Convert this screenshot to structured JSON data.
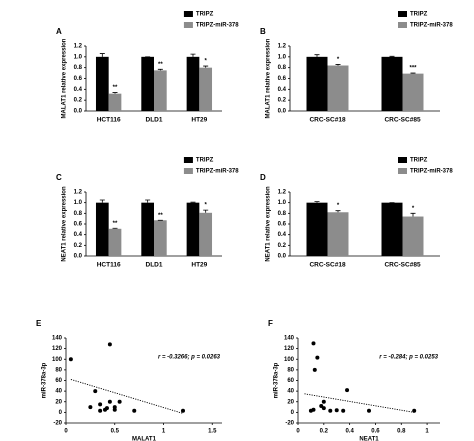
{
  "chart_data": [
    {
      "type": "bar",
      "label": "A",
      "ylabel": "MALAT1 relative expression",
      "categories": [
        "HCT116",
        "DLD1",
        "HT29"
      ],
      "series": [
        {
          "name": "TRIPZ",
          "color": "#000000",
          "values": [
            1.0,
            1.0,
            1.0
          ],
          "errors": [
            0.06,
            0.0,
            0.05
          ]
        },
        {
          "name": "TRIPZ-miR-378",
          "color": "#8c8c8c",
          "values": [
            0.32,
            0.75,
            0.8
          ],
          "errors": [
            0.02,
            0.02,
            0.03
          ],
          "annotations": [
            "**",
            "**",
            "*"
          ]
        }
      ],
      "ylim": [
        0,
        1.2
      ],
      "yticks": [
        {
          "value": 0,
          "label": "0.0"
        },
        0.2,
        0.4,
        0.6,
        0.8,
        {
          "value": 1,
          "label": "1.0"
        },
        1.2
      ]
    },
    {
      "type": "bar",
      "label": "B",
      "ylabel": "MALAT1 relative expression",
      "categories": [
        "CRC-SC#18",
        "CRC-SC#85"
      ],
      "series": [
        {
          "name": "TRIPZ",
          "color": "#000000",
          "values": [
            1.0,
            1.0
          ],
          "errors": [
            0.04,
            0.01
          ]
        },
        {
          "name": "TRIPZ-miR-378",
          "color": "#8c8c8c",
          "values": [
            0.84,
            0.69
          ],
          "errors": [
            0.02,
            0.01
          ],
          "annotations": [
            "*",
            "***"
          ]
        }
      ],
      "ylim": [
        0,
        1.2
      ],
      "yticks": [
        {
          "value": 0,
          "label": "0.0"
        },
        0.2,
        0.4,
        0.6,
        0.8,
        {
          "value": 1,
          "label": "1.0"
        },
        1.2
      ]
    },
    {
      "type": "bar",
      "label": "C",
      "ylabel": "NEAT1 relative expression",
      "categories": [
        "HCT116",
        "DLD1",
        "HT29"
      ],
      "series": [
        {
          "name": "TRIPZ",
          "color": "#000000",
          "values": [
            1.0,
            1.0,
            1.0
          ],
          "errors": [
            0.05,
            0.05,
            0.01
          ]
        },
        {
          "name": "TRIPZ-miR-378",
          "color": "#8c8c8c",
          "values": [
            0.51,
            0.67,
            0.81
          ],
          "errors": [
            0.01,
            0.0,
            0.05
          ],
          "annotations": [
            "**",
            "**",
            "*"
          ]
        }
      ],
      "ylim": [
        0,
        1.2
      ],
      "yticks": [
        {
          "value": 0,
          "label": "0.0"
        },
        0.2,
        0.4,
        0.6,
        0.8,
        {
          "value": 1,
          "label": "1.0"
        },
        1.2
      ]
    },
    {
      "type": "bar",
      "label": "D",
      "ylabel": "NEAT1 relative expression",
      "categories": [
        "CRC-SC#18",
        "CRC-SC#85"
      ],
      "series": [
        {
          "name": "TRIPZ",
          "color": "#000000",
          "values": [
            1.0,
            1.0
          ],
          "errors": [
            0.02,
            0.0
          ]
        },
        {
          "name": "TRIPZ-miR-378",
          "color": "#8c8c8c",
          "values": [
            0.82,
            0.74
          ],
          "errors": [
            0.03,
            0.06
          ],
          "annotations": [
            "*",
            "*"
          ]
        }
      ],
      "ylim": [
        0,
        1.2
      ],
      "yticks": [
        {
          "value": 0,
          "label": "0.0"
        },
        0.2,
        0.4,
        0.6,
        0.8,
        {
          "value": 1,
          "label": "1.0"
        },
        1.2
      ]
    },
    {
      "type": "scatter",
      "label": "E",
      "xlabel": "MALAT1",
      "ylabel": "miR-378a-3p",
      "annotation": "r = -0.3266; p = 0.0263",
      "x": [
        0.05,
        0.45,
        0.3,
        0.25,
        0.35,
        0.4,
        0.45,
        0.5,
        0.55,
        0.35,
        0.5,
        0.7,
        1.2,
        0.42
      ],
      "y": [
        100,
        128,
        40,
        10,
        15,
        5,
        20,
        10,
        20,
        3,
        5,
        3,
        3,
        8
      ],
      "trendline": {
        "x": [
          0.05,
          1.2
        ],
        "y": [
          62,
          -2
        ]
      },
      "xlim": [
        0,
        1.6
      ],
      "xticks": [
        0,
        0.5,
        1,
        1.5
      ],
      "ylim": [
        -20,
        140
      ],
      "yticks": [
        -20,
        0,
        20,
        40,
        60,
        80,
        100,
        120,
        140
      ]
    },
    {
      "type": "scatter",
      "label": "F",
      "xlabel": "NEAT1",
      "ylabel": "miR-378a-3p",
      "annotation": "r = -0.284; p = 0.0253",
      "x": [
        0.12,
        0.15,
        0.13,
        0.38,
        0.2,
        0.12,
        0.2,
        0.25,
        0.1,
        0.3,
        0.35,
        0.55,
        0.9,
        0.18
      ],
      "y": [
        130,
        103,
        80,
        42,
        20,
        5,
        8,
        3,
        3,
        4,
        3,
        3,
        3,
        12
      ],
      "trendline": {
        "x": [
          0.05,
          0.9
        ],
        "y": [
          35,
          0
        ]
      },
      "xlim": [
        0,
        1.1
      ],
      "xticks": [
        0,
        0.2,
        0.4,
        0.6,
        0.8,
        1
      ],
      "ylim": [
        -20,
        140
      ],
      "yticks": [
        -20,
        0,
        20,
        40,
        60,
        80,
        100,
        120,
        140
      ]
    }
  ]
}
